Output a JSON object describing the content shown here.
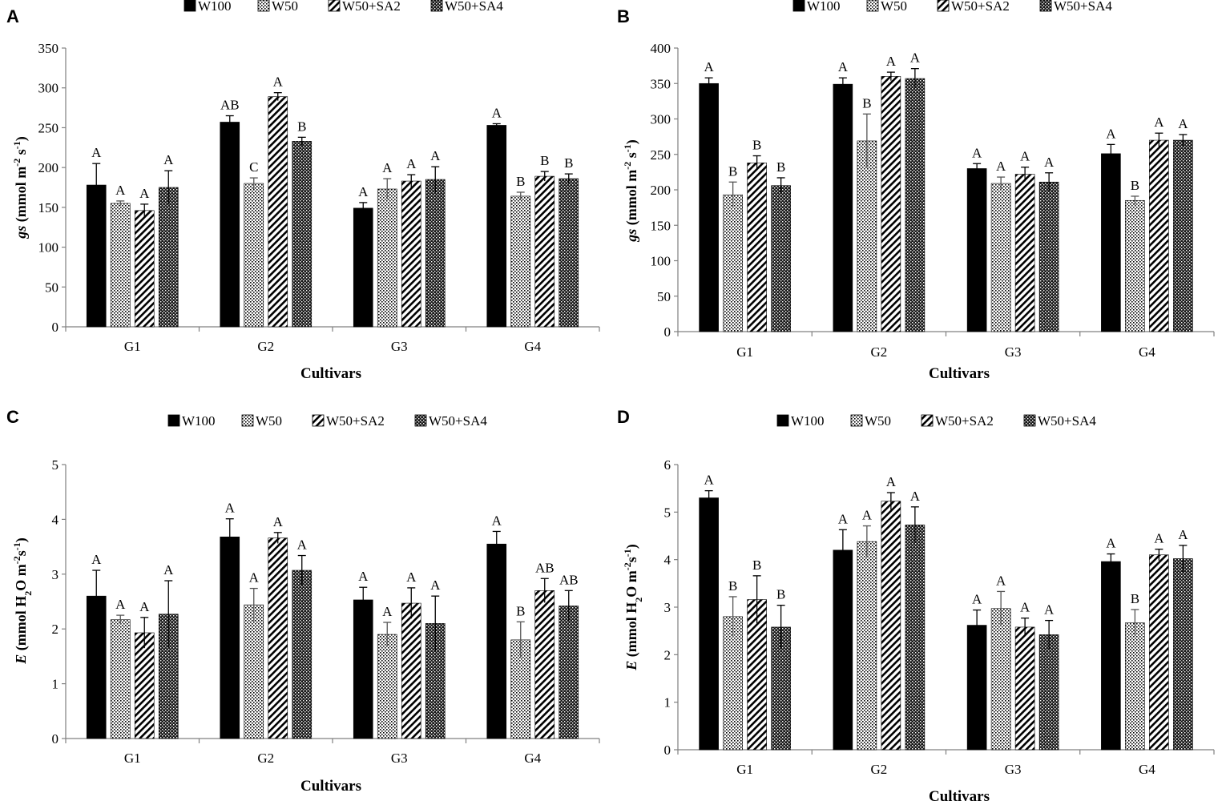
{
  "legend": [
    "W100",
    "W50",
    "W50+SA2",
    "W50+SA4"
  ],
  "categories": [
    "G1",
    "G2",
    "G3",
    "G4"
  ],
  "colors": {
    "bar_solid": "#000000",
    "axis": "#808080",
    "text": "#000000"
  },
  "chart_data": [
    {
      "panel": "A",
      "type": "bar",
      "title": "",
      "xlabel": "Cultivars",
      "ylabel": {
        "var": "gs",
        "unit": "(mmol m",
        "sup1": "-2",
        "mid": " s",
        "sup2": "-1",
        "end": ")"
      },
      "ylim": [
        0,
        350
      ],
      "yticks": [
        0,
        50,
        100,
        150,
        200,
        250,
        300,
        350
      ],
      "categories": [
        "G1",
        "G2",
        "G3",
        "G4"
      ],
      "series": [
        {
          "name": "W100",
          "values": [
            178,
            257,
            149,
            253
          ],
          "errors": [
            27,
            8,
            7,
            2
          ],
          "labels": [
            "A",
            "AB",
            "A",
            "A"
          ]
        },
        {
          "name": "W50",
          "values": [
            155,
            180,
            173,
            164
          ],
          "errors": [
            3,
            7,
            13,
            5
          ],
          "labels": [
            "A",
            "C",
            "A",
            "B"
          ]
        },
        {
          "name": "W50+SA2",
          "values": [
            146,
            289,
            183,
            189
          ],
          "errors": [
            8,
            5,
            8,
            6
          ],
          "labels": [
            "A",
            "A",
            "A",
            "B"
          ]
        },
        {
          "name": "W50+SA4",
          "values": [
            175,
            233,
            185,
            186
          ],
          "errors": [
            21,
            5,
            16,
            6
          ],
          "labels": [
            "A",
            "B",
            "A",
            "B"
          ]
        }
      ]
    },
    {
      "panel": "B",
      "type": "bar",
      "title": "",
      "xlabel": "Cultivars",
      "ylabel": {
        "var": "gs",
        "unit": "(mmol m",
        "sup1": "-2",
        "mid": " s",
        "sup2": "-1",
        "end": ")"
      },
      "ylim": [
        0,
        400
      ],
      "yticks": [
        0,
        50,
        100,
        150,
        200,
        250,
        300,
        350,
        400
      ],
      "categories": [
        "G1",
        "G2",
        "G3",
        "G4"
      ],
      "series": [
        {
          "name": "W100",
          "values": [
            350,
            349,
            230,
            251
          ],
          "errors": [
            8,
            9,
            7,
            13
          ],
          "labels": [
            "A",
            "A",
            "A",
            "A"
          ]
        },
        {
          "name": "W50",
          "values": [
            193,
            269,
            209,
            185
          ],
          "errors": [
            18,
            38,
            9,
            6
          ],
          "labels": [
            "B",
            "B",
            "A",
            "B"
          ]
        },
        {
          "name": "W50+SA2",
          "values": [
            238,
            360,
            222,
            270
          ],
          "errors": [
            10,
            6,
            10,
            10
          ],
          "labels": [
            "B",
            "A",
            "A",
            "A"
          ]
        },
        {
          "name": "W50+SA4",
          "values": [
            206,
            357,
            211,
            270
          ],
          "errors": [
            11,
            14,
            13,
            8
          ],
          "labels": [
            "B",
            "A",
            "A",
            "A"
          ]
        }
      ]
    },
    {
      "panel": "C",
      "type": "bar",
      "title": "",
      "xlabel": "Cultivars",
      "ylabel": {
        "var": "E",
        "unit": "(mmol H",
        "sub": "2",
        "mid": "O m",
        "sup1": "-2",
        "mid2": "s",
        "sup2": "-1",
        "end": ")"
      },
      "ylim": [
        0,
        5
      ],
      "yticks": [
        0,
        1,
        2,
        3,
        4,
        5
      ],
      "categories": [
        "G1",
        "G2",
        "G3",
        "G4"
      ],
      "series": [
        {
          "name": "W100",
          "values": [
            2.6,
            3.68,
            2.53,
            3.55
          ],
          "errors": [
            0.47,
            0.33,
            0.23,
            0.23
          ],
          "labels": [
            "A",
            "A",
            "A",
            "A"
          ]
        },
        {
          "name": "W50",
          "values": [
            2.17,
            2.44,
            1.9,
            1.8
          ],
          "errors": [
            0.08,
            0.3,
            0.22,
            0.33
          ],
          "labels": [
            "A",
            "A",
            "A",
            "B"
          ]
        },
        {
          "name": "W50+SA2",
          "values": [
            1.93,
            3.66,
            2.47,
            2.7
          ],
          "errors": [
            0.28,
            0.1,
            0.28,
            0.22
          ],
          "labels": [
            "A",
            "A",
            "A",
            "AB"
          ]
        },
        {
          "name": "W50+SA4",
          "values": [
            2.27,
            3.07,
            2.1,
            2.42
          ],
          "errors": [
            0.61,
            0.27,
            0.5,
            0.28
          ],
          "labels": [
            "A",
            "A",
            "A",
            "AB"
          ]
        }
      ]
    },
    {
      "panel": "D",
      "type": "bar",
      "title": "",
      "xlabel": "Cultivars",
      "ylabel": {
        "var": "E",
        "unit": "(mmol H",
        "sub": "2",
        "mid": "O m",
        "sup1": "-2",
        "mid2": "s",
        "sup2": "-1",
        "end": ")"
      },
      "ylim": [
        0,
        6
      ],
      "yticks": [
        0,
        1,
        2,
        3,
        4,
        5,
        6
      ],
      "categories": [
        "G1",
        "G2",
        "G3",
        "G4"
      ],
      "series": [
        {
          "name": "W100",
          "values": [
            5.3,
            4.2,
            2.62,
            3.96
          ],
          "errors": [
            0.15,
            0.43,
            0.32,
            0.16
          ],
          "labels": [
            "A",
            "A",
            "A",
            "A"
          ]
        },
        {
          "name": "W50",
          "values": [
            2.8,
            4.38,
            2.97,
            2.67
          ],
          "errors": [
            0.42,
            0.33,
            0.36,
            0.28
          ],
          "labels": [
            "B",
            "A",
            "A",
            "B"
          ]
        },
        {
          "name": "W50+SA2",
          "values": [
            3.16,
            5.23,
            2.58,
            4.1
          ],
          "errors": [
            0.5,
            0.18,
            0.19,
            0.12
          ],
          "labels": [
            "B",
            "A",
            "A",
            "A"
          ]
        },
        {
          "name": "W50+SA4",
          "values": [
            2.58,
            4.73,
            2.42,
            4.02
          ],
          "errors": [
            0.46,
            0.38,
            0.3,
            0.28
          ],
          "labels": [
            "B",
            "A",
            "A",
            "A"
          ]
        }
      ]
    }
  ]
}
